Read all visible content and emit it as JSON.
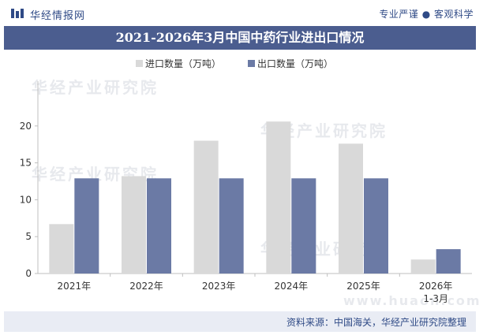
{
  "header": {
    "brand": "华经情报网",
    "slogan": "专业严谨 ● 客观科学"
  },
  "title": "2021-2026年3月中国中药行业进出口情况",
  "footer": {
    "source": "资料来源：中国海关，华经产业研究院整理"
  },
  "watermarks": {
    "text": "华经产业研究院",
    "url": "www.huaon.com"
  },
  "colors": {
    "accent": "#4b5d8f",
    "import": "#d9d9d9",
    "export": "#6b7aa5"
  },
  "chart_data": {
    "type": "bar",
    "categories": [
      "2021年",
      "2022年",
      "2023年",
      "2024年",
      "2025年",
      "2026年\n1-3月"
    ],
    "series": [
      {
        "name": "进口数量（万吨）",
        "values": [
          6.7,
          13.2,
          18.0,
          20.6,
          17.6,
          1.9
        ]
      },
      {
        "name": "出口数量（万吨）",
        "values": [
          12.9,
          12.9,
          12.9,
          12.9,
          12.9,
          3.3
        ]
      }
    ],
    "ylim": [
      0,
      25
    ],
    "yticks": [
      0,
      5,
      10,
      15,
      20
    ],
    "legend": "top-left",
    "grid": false
  }
}
